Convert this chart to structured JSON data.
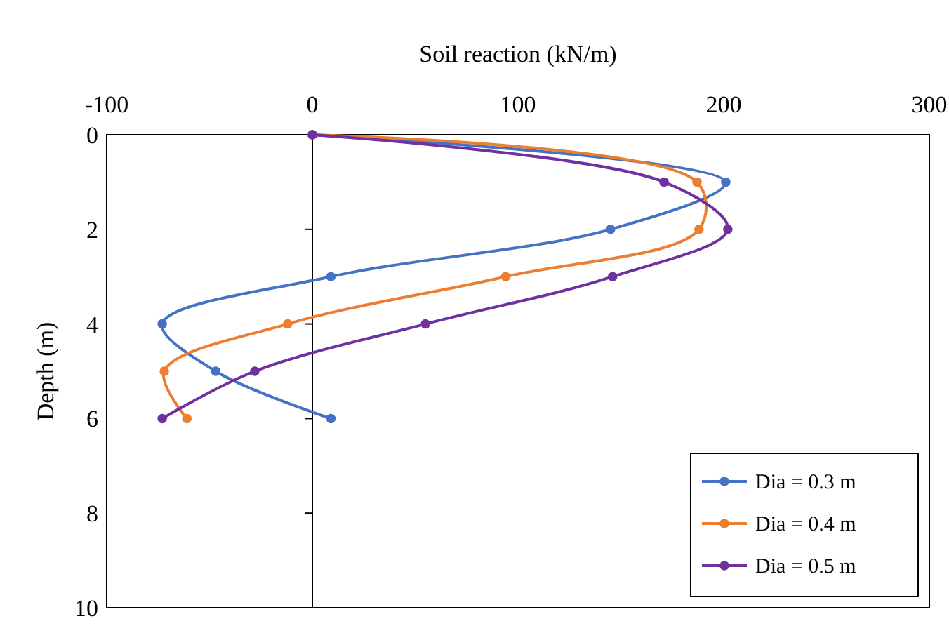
{
  "chart_data": {
    "type": "line",
    "xlabel": "Soil reaction (kN/m)",
    "ylabel": "Depth (m)",
    "xlim": [
      -100,
      300
    ],
    "xticks": [
      -100,
      0,
      100,
      200,
      300
    ],
    "ylim": [
      10,
      0
    ],
    "yticks": [
      0,
      2,
      4,
      6,
      8,
      10
    ],
    "grid": false,
    "ref_lines": [
      {
        "axis": "x",
        "value": 0,
        "color": "#000000"
      }
    ],
    "legend": "bottom right",
    "marker": "circle",
    "line_style": "solid",
    "series": [
      {
        "name": "Dia = 0.3 m",
        "color": "#4472c4",
        "x": [
          0,
          201,
          145,
          9,
          -73,
          -47,
          9
        ],
        "values": [
          0,
          1,
          2,
          3,
          4,
          5,
          6
        ]
      },
      {
        "name": "Dia = 0.4 m",
        "color": "#ed7d31",
        "x": [
          0,
          187,
          188,
          94,
          -12,
          -72,
          -61
        ],
        "values": [
          0,
          1,
          2,
          3,
          4,
          5,
          6
        ]
      },
      {
        "name": "Dia = 0.5 m",
        "color": "#7030a0",
        "x": [
          0,
          171,
          202,
          146,
          55,
          -28,
          -73
        ],
        "values": [
          0,
          1,
          2,
          3,
          4,
          5,
          6
        ]
      }
    ]
  }
}
